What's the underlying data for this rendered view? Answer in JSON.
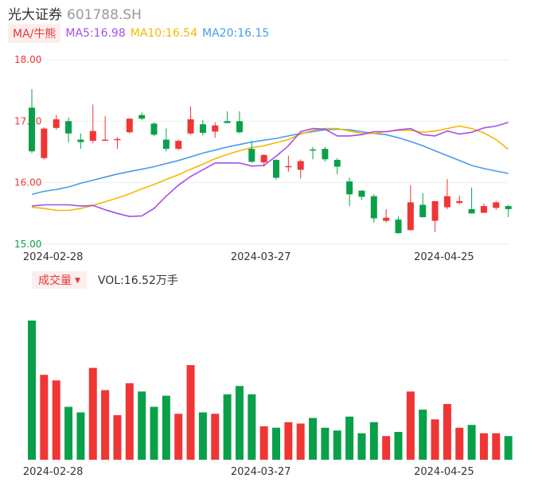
{
  "header": {
    "name": "光大证券",
    "code": "601788.SH"
  },
  "ma_legend": {
    "tag": "MA/牛熊",
    "items": [
      {
        "label": "MA5:16.98",
        "color": "#a64ee8"
      },
      {
        "label": "MA10:16.54",
        "color": "#f5b800"
      },
      {
        "label": "MA20:16.15",
        "color": "#4a9de8"
      }
    ]
  },
  "volume_legend": {
    "tag": "成交量",
    "tag_arrow": "▼",
    "label": "VOL:16.52万手"
  },
  "colors": {
    "up": "#f03535",
    "down": "#0aa04a",
    "axis_text": "#e53935",
    "axis_text_low": "#0aa04a",
    "grid": "#eeeeee"
  },
  "chart_data": [
    {
      "type": "candlestick",
      "y_ticks": [
        "18.00",
        "17.00",
        "16.00",
        "15.00"
      ],
      "ylim": [
        15.0,
        18.0
      ],
      "x_ticks": [
        {
          "index": 2,
          "label": "2024-02-28"
        },
        {
          "index": 19,
          "label": "2024-03-27"
        },
        {
          "index": 34,
          "label": "2024-04-25"
        }
      ],
      "candles": [
        {
          "o": 17.22,
          "h": 17.52,
          "l": 16.48,
          "c": 16.51
        },
        {
          "o": 16.4,
          "h": 16.9,
          "l": 16.38,
          "c": 16.88
        },
        {
          "o": 16.89,
          "h": 17.1,
          "l": 16.86,
          "c": 17.03
        },
        {
          "o": 17.0,
          "h": 17.06,
          "l": 16.66,
          "c": 16.8
        },
        {
          "o": 16.7,
          "h": 16.8,
          "l": 16.55,
          "c": 16.66
        },
        {
          "o": 16.68,
          "h": 17.27,
          "l": 16.64,
          "c": 16.84
        },
        {
          "o": 16.7,
          "h": 17.08,
          "l": 16.68,
          "c": 16.7
        },
        {
          "o": 16.71,
          "h": 16.74,
          "l": 16.55,
          "c": 16.71
        },
        {
          "o": 16.82,
          "h": 17.05,
          "l": 16.8,
          "c": 17.04
        },
        {
          "o": 17.1,
          "h": 17.14,
          "l": 17.02,
          "c": 17.04
        },
        {
          "o": 16.96,
          "h": 16.98,
          "l": 16.76,
          "c": 16.78
        },
        {
          "o": 16.7,
          "h": 16.88,
          "l": 16.51,
          "c": 16.55
        },
        {
          "o": 16.55,
          "h": 16.7,
          "l": 16.53,
          "c": 16.68
        },
        {
          "o": 16.8,
          "h": 17.24,
          "l": 16.78,
          "c": 17.03
        },
        {
          "o": 16.95,
          "h": 17.02,
          "l": 16.77,
          "c": 16.81
        },
        {
          "o": 16.83,
          "h": 16.98,
          "l": 16.73,
          "c": 16.93
        },
        {
          "o": 17.0,
          "h": 17.16,
          "l": 16.97,
          "c": 16.97
        },
        {
          "o": 17.0,
          "h": 17.16,
          "l": 16.8,
          "c": 16.82
        },
        {
          "o": 16.55,
          "h": 16.68,
          "l": 16.32,
          "c": 16.34
        },
        {
          "o": 16.33,
          "h": 16.46,
          "l": 16.26,
          "c": 16.45
        },
        {
          "o": 16.37,
          "h": 16.38,
          "l": 16.05,
          "c": 16.08
        },
        {
          "o": 16.26,
          "h": 16.44,
          "l": 16.18,
          "c": 16.27
        },
        {
          "o": 16.21,
          "h": 16.38,
          "l": 16.07,
          "c": 16.35
        },
        {
          "o": 16.54,
          "h": 16.58,
          "l": 16.38,
          "c": 16.53
        },
        {
          "o": 16.55,
          "h": 16.58,
          "l": 16.34,
          "c": 16.38
        },
        {
          "o": 16.37,
          "h": 16.4,
          "l": 16.14,
          "c": 16.26
        },
        {
          "o": 16.02,
          "h": 16.08,
          "l": 15.62,
          "c": 15.81
        },
        {
          "o": 15.87,
          "h": 15.88,
          "l": 15.72,
          "c": 15.77
        },
        {
          "o": 15.78,
          "h": 15.81,
          "l": 15.35,
          "c": 15.42
        },
        {
          "o": 15.38,
          "h": 15.57,
          "l": 15.35,
          "c": 15.43
        },
        {
          "o": 15.4,
          "h": 15.45,
          "l": 15.17,
          "c": 15.18
        },
        {
          "o": 15.23,
          "h": 15.96,
          "l": 15.22,
          "c": 15.68
        },
        {
          "o": 15.64,
          "h": 15.83,
          "l": 15.43,
          "c": 15.44
        },
        {
          "o": 15.38,
          "h": 15.7,
          "l": 15.2,
          "c": 15.7
        },
        {
          "o": 15.6,
          "h": 16.06,
          "l": 15.57,
          "c": 15.78
        },
        {
          "o": 15.67,
          "h": 15.79,
          "l": 15.65,
          "c": 15.7
        },
        {
          "o": 15.57,
          "h": 15.92,
          "l": 15.5,
          "c": 15.5
        },
        {
          "o": 15.51,
          "h": 15.66,
          "l": 15.51,
          "c": 15.62
        },
        {
          "o": 15.59,
          "h": 15.7,
          "l": 15.56,
          "c": 15.68
        },
        {
          "o": 15.62,
          "h": 15.64,
          "l": 15.44,
          "c": 15.57
        }
      ],
      "ma5": [
        15.62,
        15.64,
        15.64,
        15.64,
        15.62,
        15.63,
        15.56,
        15.5,
        15.45,
        15.46,
        15.58,
        15.78,
        15.96,
        16.1,
        16.21,
        16.32,
        16.32,
        16.32,
        16.27,
        16.28,
        16.43,
        16.6,
        16.83,
        16.88,
        16.87,
        16.76,
        16.76,
        16.78,
        16.83,
        16.83,
        16.86,
        16.88,
        16.78,
        16.76,
        16.84,
        16.79,
        16.82,
        16.89,
        16.92,
        16.98
      ],
      "ma10": [
        15.6,
        15.58,
        15.55,
        15.55,
        15.58,
        15.63,
        15.69,
        15.75,
        15.82,
        15.9,
        15.97,
        16.05,
        16.13,
        16.22,
        16.3,
        16.39,
        16.46,
        16.52,
        16.57,
        16.6,
        16.65,
        16.7,
        16.79,
        16.85,
        16.88,
        16.88,
        16.84,
        16.8,
        16.8,
        16.83,
        16.85,
        16.85,
        16.82,
        16.84,
        16.88,
        16.92,
        16.88,
        16.81,
        16.7,
        16.54
      ],
      "ma20": [
        15.81,
        15.86,
        15.89,
        15.93,
        15.99,
        16.04,
        16.09,
        16.14,
        16.18,
        16.22,
        16.26,
        16.31,
        16.36,
        16.42,
        16.48,
        16.53,
        16.58,
        16.62,
        16.66,
        16.69,
        16.72,
        16.76,
        16.8,
        16.83,
        16.86,
        16.87,
        16.86,
        16.83,
        16.8,
        16.78,
        16.73,
        16.67,
        16.6,
        16.52,
        16.44,
        16.36,
        16.28,
        16.23,
        16.19,
        16.15
      ]
    },
    {
      "type": "bar",
      "series_name": "VOL",
      "x_ticks": [
        {
          "index": 2,
          "label": "2024-02-28"
        },
        {
          "index": 19,
          "label": "2024-03-27"
        },
        {
          "index": 34,
          "label": "2024-04-25"
        }
      ],
      "values": [
        100,
        61,
        57,
        38,
        34,
        66,
        50,
        32,
        55,
        49,
        38,
        46,
        33,
        68,
        34,
        33,
        47,
        53,
        47,
        24,
        23,
        27,
        26,
        30,
        23,
        21,
        31,
        19,
        27,
        17,
        20,
        49,
        36,
        29,
        40,
        23,
        25,
        19,
        19,
        17
      ]
    }
  ]
}
